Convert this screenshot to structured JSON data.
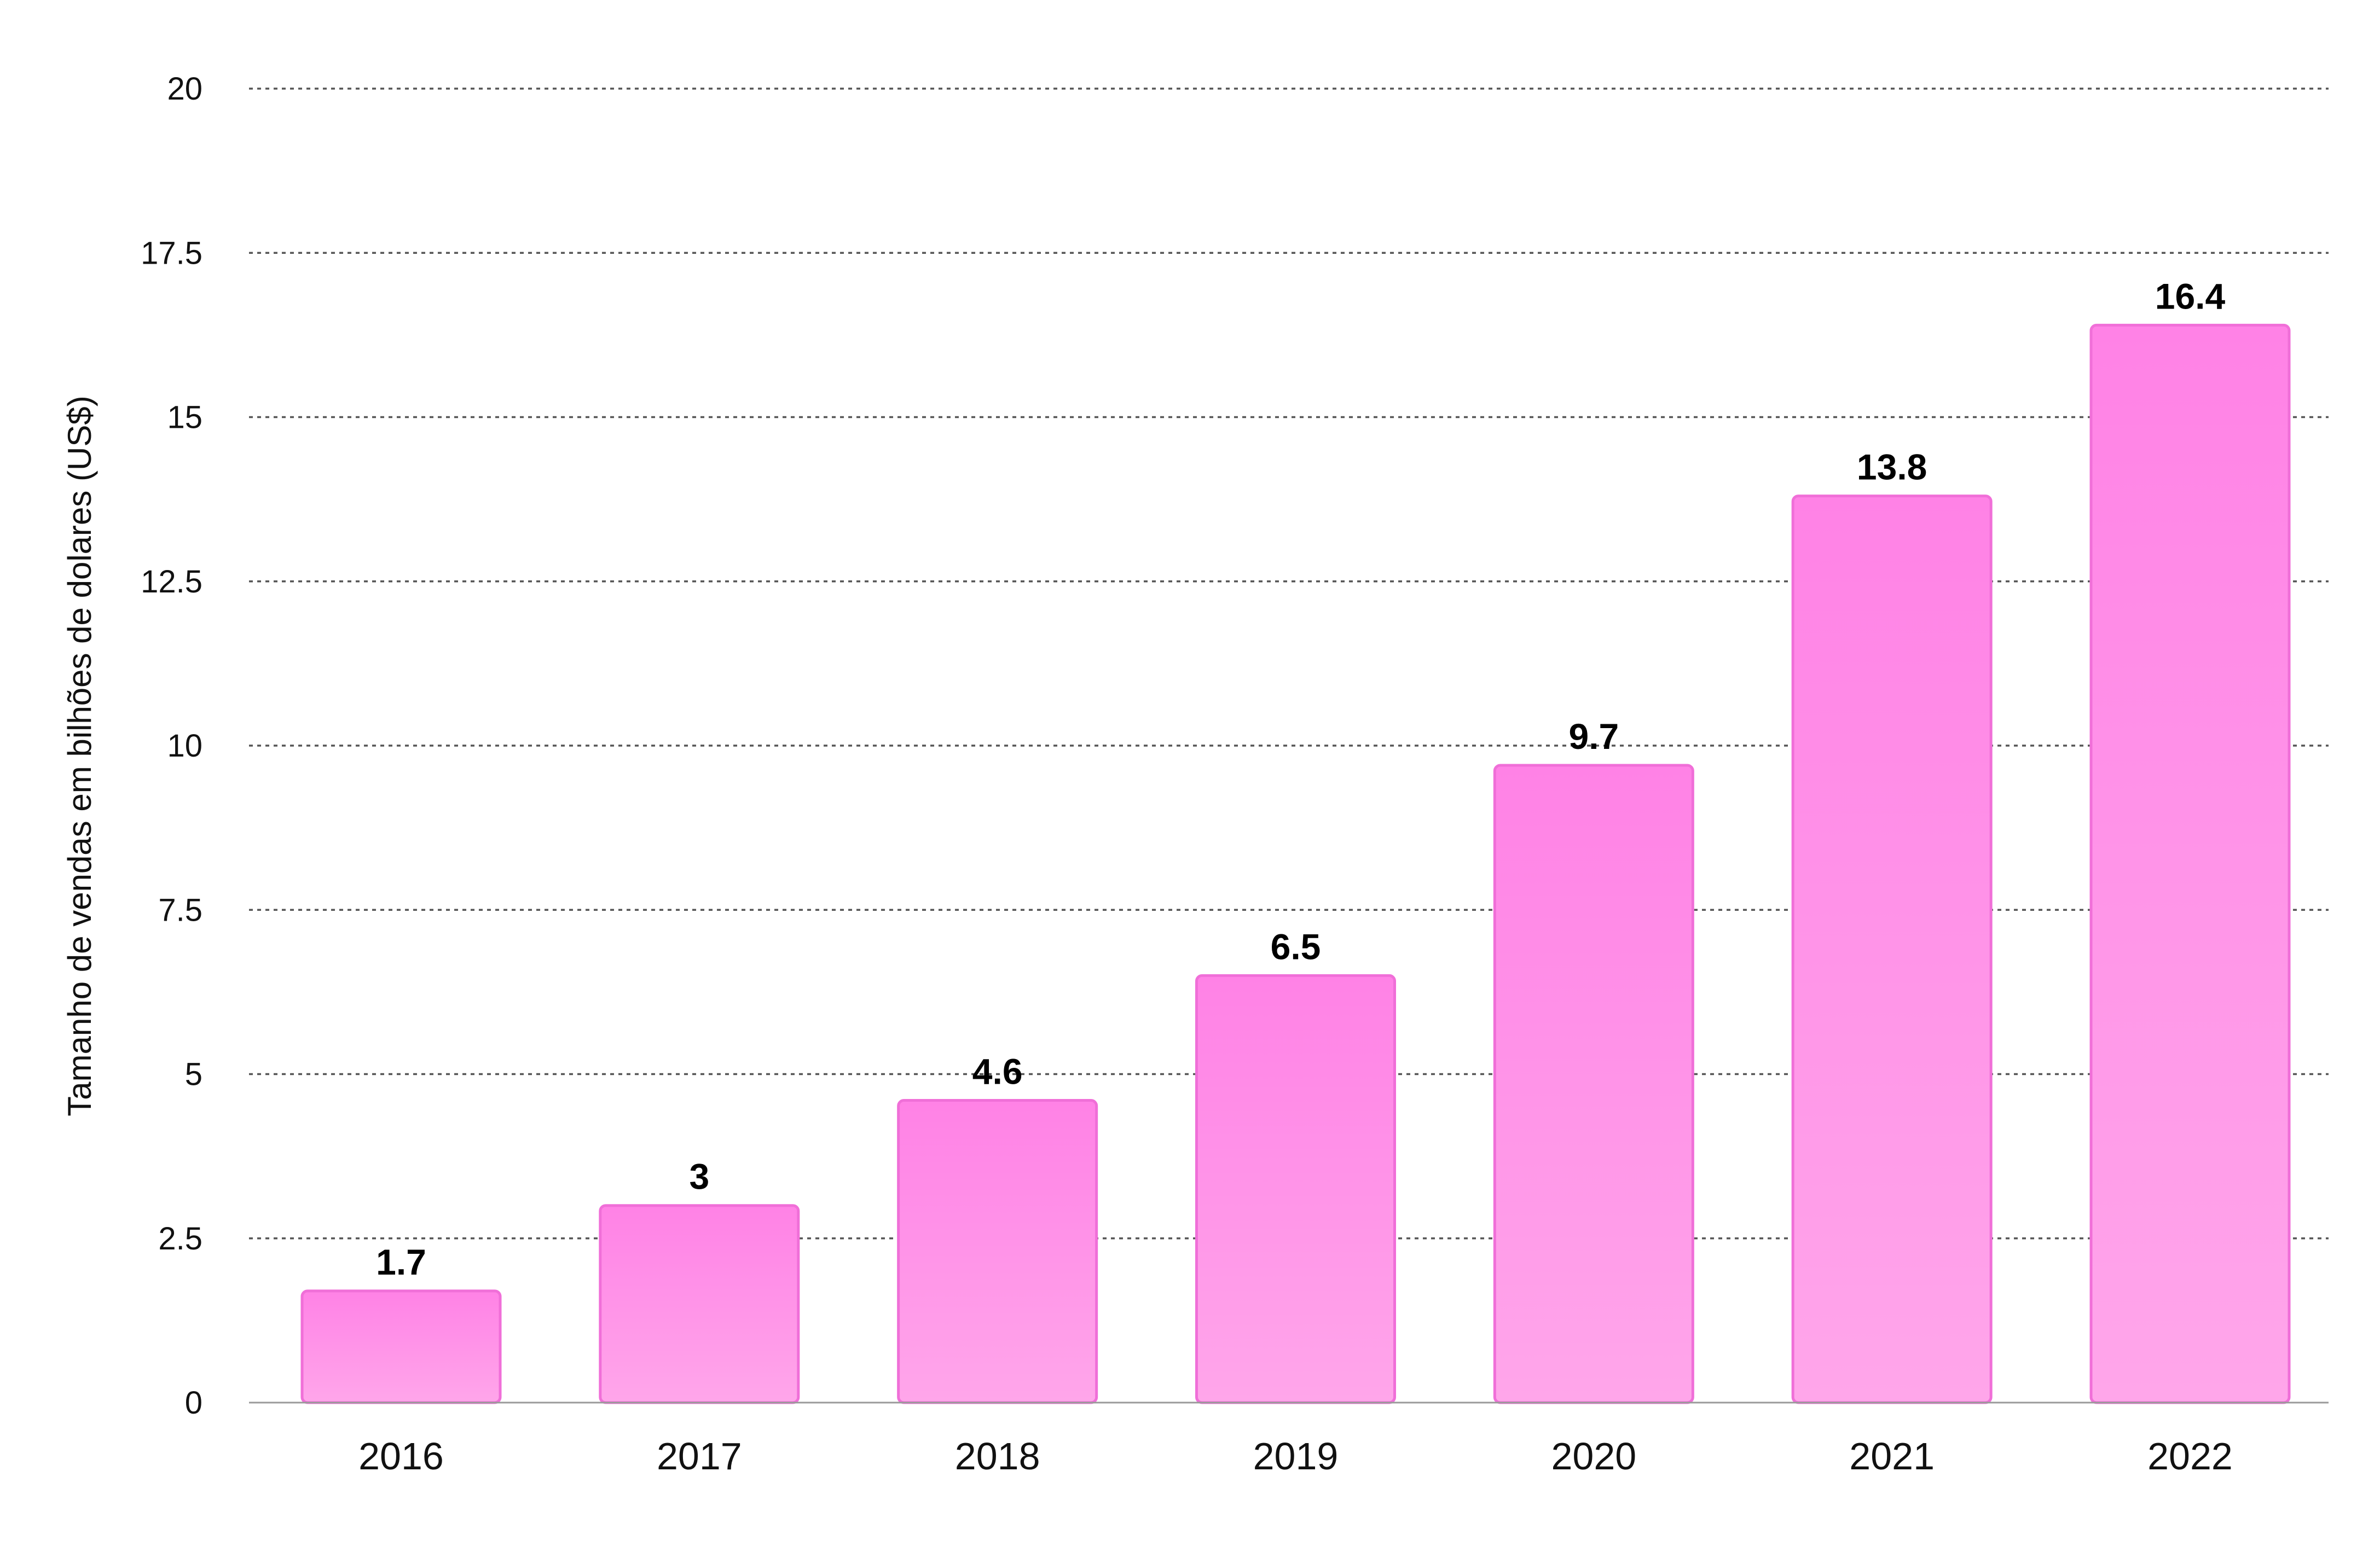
{
  "chart_data": {
    "type": "bar",
    "title": "",
    "xlabel": "",
    "ylabel": "Tamanho de vendas em bilhões de dolares (US$)",
    "categories": [
      "2016",
      "2017",
      "2018",
      "2019",
      "2020",
      "2021",
      "2022"
    ],
    "values": [
      1.7,
      3,
      4.6,
      6.5,
      9.7,
      13.8,
      16.4
    ],
    "value_labels": [
      "1.7",
      "3",
      "4.6",
      "6.5",
      "9.7",
      "13.8",
      "16.4"
    ],
    "ylim": [
      0,
      20
    ],
    "yticks": [
      0,
      2.5,
      5,
      7.5,
      10,
      12.5,
      15,
      17.5,
      20
    ],
    "ytick_labels": [
      "0",
      "2.5",
      "5",
      "7.5",
      "10",
      "12.5",
      "15",
      "17.5",
      "20"
    ],
    "grid": true,
    "grid_style": "dotted",
    "legend": "none",
    "colors": {
      "bar_top": "#ff82e6",
      "bar_bottom": "#ffa6ea",
      "bar_edge": "#f06fd8",
      "grid": "#555555",
      "axis": "#9a9a9a"
    }
  }
}
